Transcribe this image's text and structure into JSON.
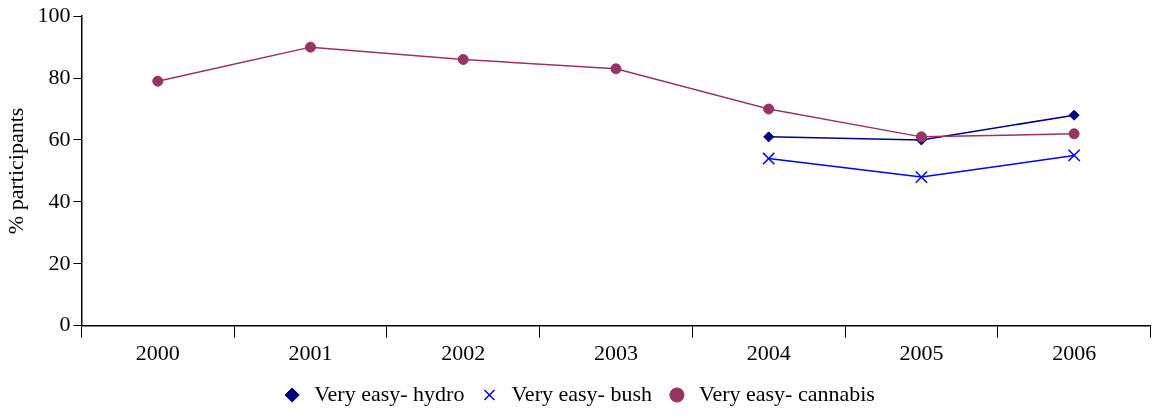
{
  "chart_data": {
    "type": "line",
    "ylabel": "% participants",
    "categories": [
      "2000",
      "2001",
      "2002",
      "2003",
      "2004",
      "2005",
      "2006"
    ],
    "series": [
      {
        "name": "Very easy- hydro",
        "color": "#000080",
        "marker": "diamond",
        "values": [
          null,
          null,
          null,
          null,
          61,
          60,
          68
        ]
      },
      {
        "name": "Very easy- bush",
        "color": "#0000ff",
        "marker": "cross",
        "values": [
          null,
          null,
          null,
          null,
          54,
          48,
          55
        ]
      },
      {
        "name": "Very easy- cannabis",
        "color": "#993366",
        "marker": "circle",
        "values": [
          79,
          90,
          86,
          83,
          70,
          61,
          62
        ]
      }
    ],
    "ylim": [
      0,
      100
    ],
    "yticks": [
      0,
      20,
      40,
      60,
      80,
      100
    ],
    "grid": false,
    "legend": "bottom"
  }
}
